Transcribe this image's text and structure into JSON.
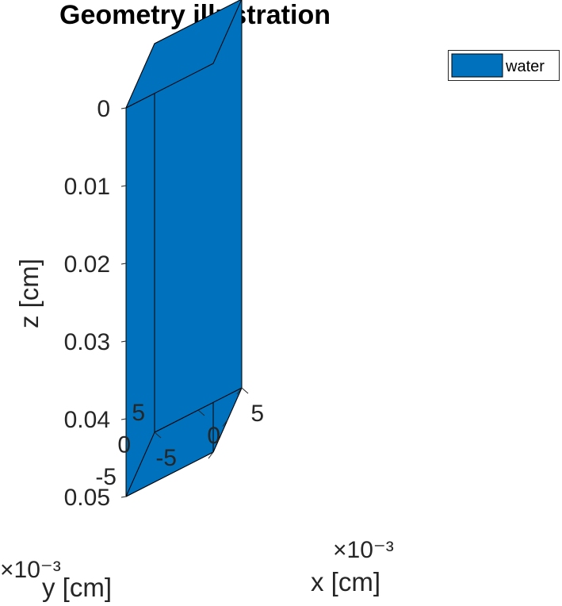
{
  "chart_data": {
    "type": "3d-box",
    "title": "Geometry illustration",
    "xlabel": "x [cm]",
    "ylabel": "y [cm]",
    "zlabel": "z [cm]",
    "x_exponent": "×10⁻³",
    "y_exponent": "×10⁻³",
    "x_ticks": [
      {
        "value": 5,
        "label": "5"
      },
      {
        "value": 0,
        "label": "0"
      },
      {
        "value": -5,
        "label": "-5"
      }
    ],
    "y_ticks": [
      {
        "value": 5,
        "label": "5"
      },
      {
        "value": 0,
        "label": "0"
      },
      {
        "value": -5,
        "label": "-5"
      }
    ],
    "z_ticks": [
      {
        "value": 0,
        "label": "0"
      },
      {
        "value": 0.01,
        "label": "0.01"
      },
      {
        "value": 0.02,
        "label": "0.02"
      },
      {
        "value": 0.03,
        "label": "0.03"
      },
      {
        "value": 0.04,
        "label": "0.04"
      },
      {
        "value": 0.05,
        "label": "0.05"
      }
    ],
    "z_direction": "reversed",
    "box": {
      "x_range": [
        -0.005,
        0.005
      ],
      "y_range": [
        -0.005,
        0.005
      ],
      "z_range": [
        0,
        0.05
      ]
    },
    "legend": {
      "position": "top-right",
      "entries": [
        {
          "name": "water",
          "color": "#0072BD"
        }
      ]
    },
    "face_color": "#0072BD",
    "edge_color": "#000000",
    "grid": false
  }
}
